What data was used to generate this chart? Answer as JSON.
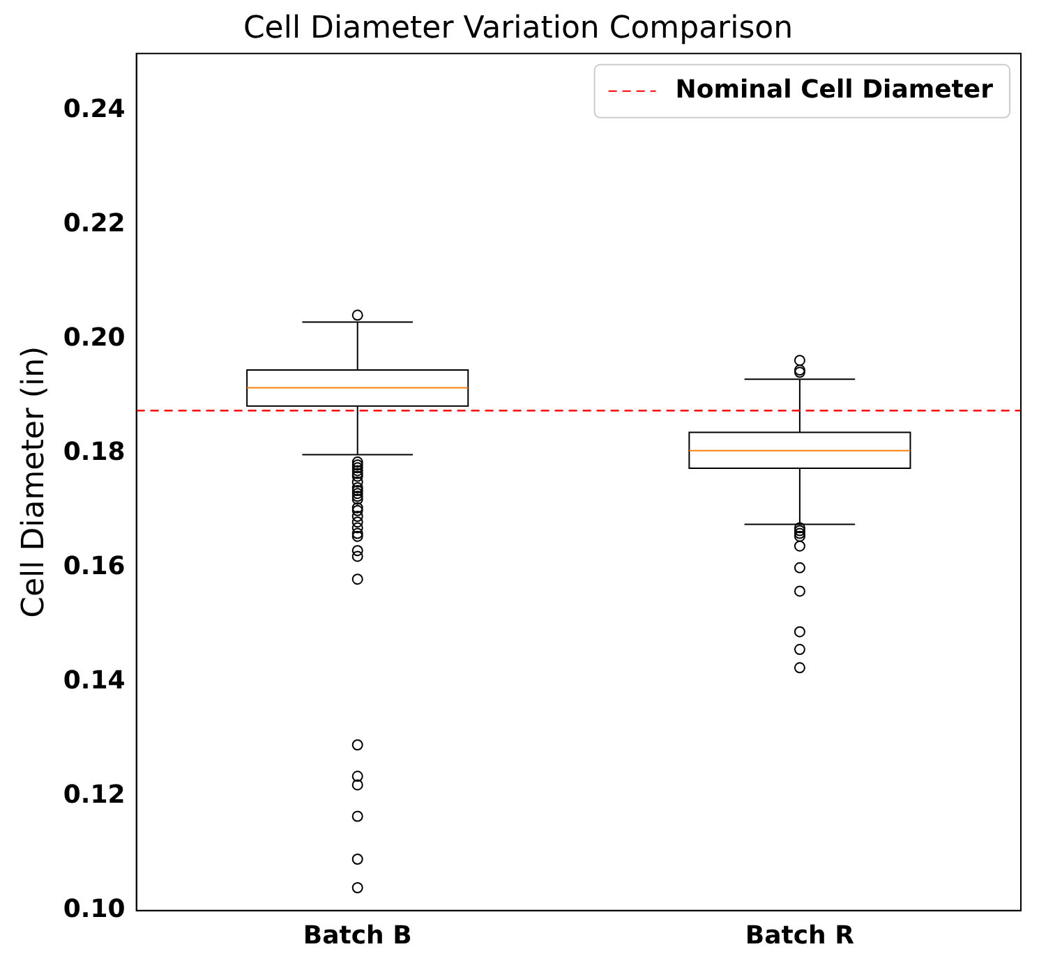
{
  "chart_data": {
    "type": "box",
    "title": "Cell Diameter Variation Comparison",
    "ylabel": "Cell Diameter (in)",
    "categories": [
      "Batch B",
      "Batch R"
    ],
    "boxes": [
      {
        "low": 0.1798,
        "q1": 0.1883,
        "median": 0.1915,
        "q3": 0.1946,
        "high": 0.203,
        "outliers": [
          0.2042,
          0.1785,
          0.178,
          0.1775,
          0.177,
          0.1765,
          0.176,
          0.175,
          0.174,
          0.1735,
          0.173,
          0.1725,
          0.172,
          0.1705,
          0.17,
          0.169,
          0.168,
          0.167,
          0.166,
          0.1655,
          0.163,
          0.162,
          0.158,
          0.129,
          0.1235,
          0.122,
          0.1165,
          0.109,
          0.104
        ]
      },
      {
        "low": 0.1676,
        "q1": 0.1774,
        "median": 0.1805,
        "q3": 0.1837,
        "high": 0.193,
        "outliers": [
          0.1963,
          0.1946,
          0.1942,
          0.167,
          0.1665,
          0.166,
          0.1655,
          0.1638,
          0.16,
          0.1559,
          0.1488,
          0.1457,
          0.1425
        ]
      }
    ],
    "ylim": [
      0.1,
      0.25
    ],
    "yticks": [
      {
        "value": 0.1,
        "label": "0.10"
      },
      0.12,
      0.14,
      0.16,
      0.18,
      {
        "value": 0.2,
        "label": "0.20"
      },
      0.22,
      0.24
    ],
    "ref_lines": [
      {
        "axis": "y",
        "value": 0.1875,
        "label": "Nominal Cell Diameter",
        "color": "#ff0000",
        "line_style": "dashed"
      }
    ],
    "legend": "top right",
    "grid": false,
    "marker": "circle"
  }
}
